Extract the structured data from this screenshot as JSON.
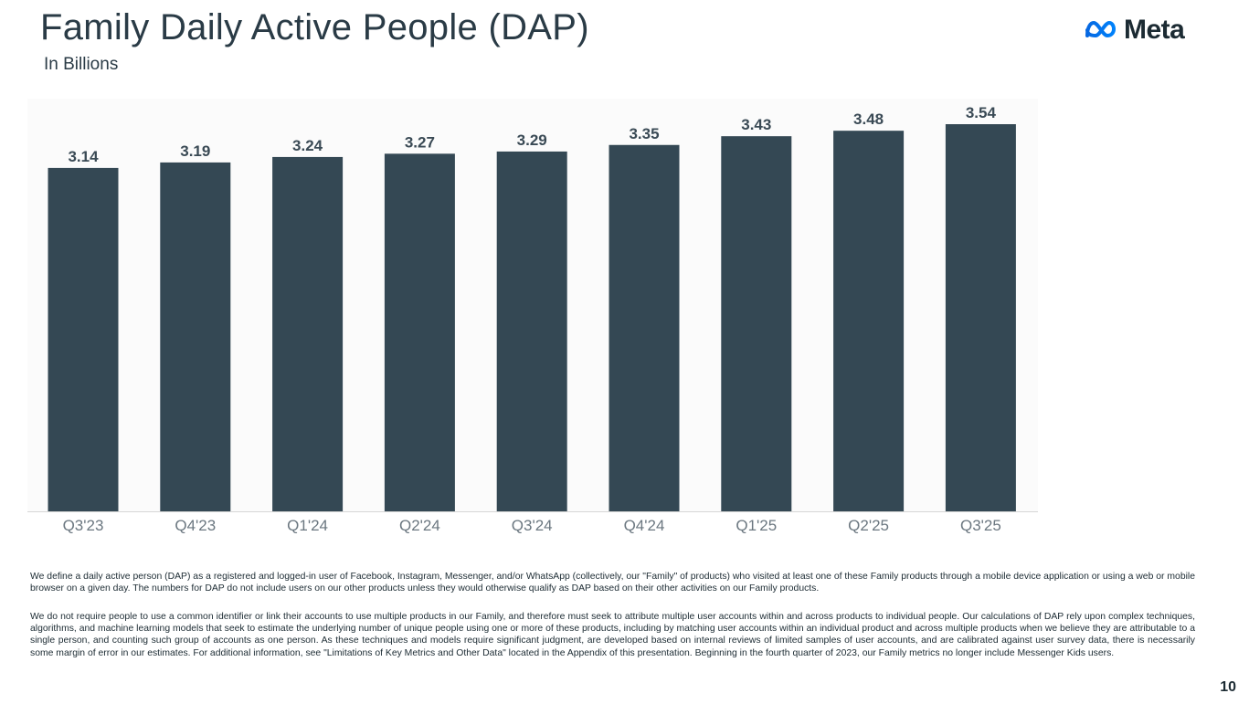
{
  "header": {
    "title": "Family Daily Active People (DAP)",
    "subtitle": "In Billions",
    "logo_text": "Meta"
  },
  "chart_data": {
    "type": "bar",
    "title": "Family Daily Active People (DAP)",
    "ylabel": "In Billions",
    "xlabel": "",
    "categories": [
      "Q3'23",
      "Q4'23",
      "Q1'24",
      "Q2'24",
      "Q3'24",
      "Q4'24",
      "Q1'25",
      "Q2'25",
      "Q3'25"
    ],
    "values": [
      3.14,
      3.19,
      3.24,
      3.27,
      3.29,
      3.35,
      3.43,
      3.48,
      3.54
    ],
    "data_labels": [
      "3.14",
      "3.19",
      "3.24",
      "3.27",
      "3.29",
      "3.35",
      "3.43",
      "3.48",
      "3.54"
    ],
    "ylim": [
      0,
      3.54
    ],
    "grid": false,
    "colors": {
      "bar": "#344854",
      "label": "#3a4a55",
      "tick": "#6b7780",
      "plot_bg": "#fbfbfb",
      "axis": "#d6d6d6"
    }
  },
  "footnotes": {
    "p1": "We define a daily active person (DAP) as a registered and logged-in user of Facebook, Instagram, Messenger, and/or WhatsApp (collectively, our \"Family\" of products) who visited at least one of these Family products through a mobile device application or using a web or mobile browser on a given day. The numbers for DAP do not include users on our other products unless they would otherwise qualify as DAP based on their other activities on our Family products.",
    "p2": "We do not require people to use a common identifier or link their accounts to use multiple products in our Family, and therefore must seek to attribute multiple user accounts within and across products to individual people. Our calculations of DAP rely upon complex techniques, algorithms, and machine learning models that seek to estimate the underlying number of unique people using one or more of these products, including by matching user accounts within an individual product and across multiple products when we believe they are attributable to a single person, and counting such group of accounts as one person. As these techniques and models require significant judgment, are developed based on internal reviews of limited samples of user accounts, and are calibrated against user survey data, there is necessarily some margin of error in our estimates. For additional information, see \"Limitations of Key Metrics and Other Data\" located in the Appendix of this presentation. Beginning in the fourth quarter of 2023, our Family metrics no longer include Messenger Kids users."
  },
  "page_number": "10",
  "colors": {
    "text": "#1c2b33",
    "title": "#2a3b46",
    "meta_blue": "#0668E1"
  }
}
